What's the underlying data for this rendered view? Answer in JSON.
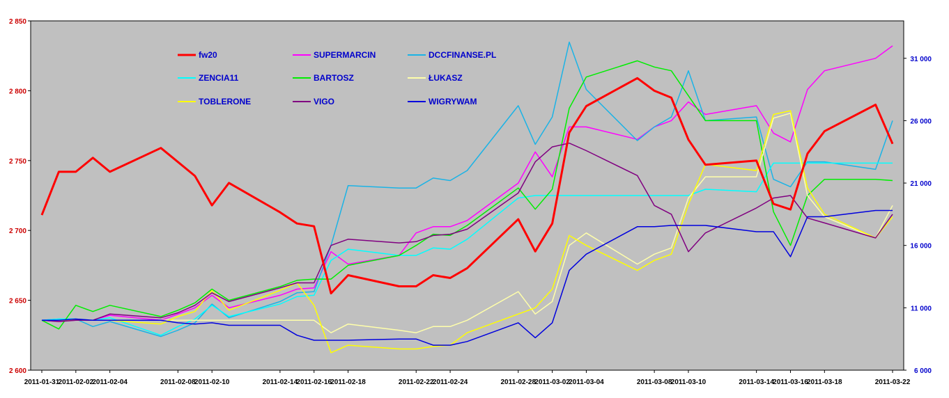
{
  "chart_data": {
    "type": "line",
    "x": [
      "2011-01-31",
      "2011-02-01",
      "2011-02-02",
      "2011-02-03",
      "2011-02-04",
      "2011-02-07",
      "2011-02-08",
      "2011-02-09",
      "2011-02-10",
      "2011-02-11",
      "2011-02-14",
      "2011-02-15",
      "2011-02-16",
      "2011-02-17",
      "2011-02-18",
      "2011-02-21",
      "2011-02-22",
      "2011-02-23",
      "2011-02-24",
      "2011-02-25",
      "2011-02-28",
      "2011-03-01",
      "2011-03-02",
      "2011-03-03",
      "2011-03-04",
      "2011-03-07",
      "2011-03-08",
      "2011-03-09",
      "2011-03-10",
      "2011-03-11",
      "2011-03-14",
      "2011-03-15",
      "2011-03-16",
      "2011-03-17",
      "2011-03-18",
      "2011-03-21",
      "2011-03-22"
    ],
    "x_tick_labels": [
      "2011-01-31",
      "2011-02-02",
      "2011-02-04",
      "2011-02-08",
      "2011-02-10",
      "2011-02-14",
      "2011-02-16",
      "2011-02-18",
      "2011-02-22",
      "2011-02-24",
      "2011-02-28",
      "2011-03-02",
      "2011-03-04",
      "2011-03-08",
      "2011-03-10",
      "2011-03-14",
      "2011-03-16",
      "2011-03-18",
      "2011-03-22"
    ],
    "y_left": {
      "min": 2600,
      "max": 2850,
      "ticks": [
        2600,
        2650,
        2700,
        2750,
        2800,
        2850
      ],
      "tick_labels": [
        "2 600",
        "2 650",
        "2 700",
        "2 750",
        "2 800",
        "2 850"
      ]
    },
    "y_right": {
      "min": 6000,
      "max": 34000,
      "ticks": [
        6000,
        11000,
        16000,
        21000,
        26000,
        31000
      ],
      "tick_labels": [
        "6 000",
        "11 000",
        "16 000",
        "21 000",
        "26 000",
        "31 000"
      ]
    },
    "plot_background": "#c0c0c0",
    "grid": false,
    "legend_position": "top-left inside plot",
    "series": [
      {
        "name": "fw20",
        "color": "#ff0000",
        "width": 3,
        "axis": "left",
        "values": [
          2711,
          2742,
          2742,
          2752,
          2742,
          2759,
          2749,
          2739,
          2718,
          2734,
          2713,
          2705,
          2703,
          2655,
          2668,
          2660,
          2660,
          2668,
          2666,
          2673,
          2708,
          2685,
          2705,
          2770,
          2789,
          2809,
          2800,
          2795,
          2765,
          2747,
          2750,
          2719,
          2715,
          2755,
          2771,
          2790,
          2762
        ]
      },
      {
        "name": "SUPERMARCIN",
        "color": "#ff00ff",
        "width": 1.5,
        "axis": "right",
        "values": [
          10000,
          9900,
          10000,
          10000,
          10400,
          10000,
          10500,
          11000,
          12000,
          11000,
          12000,
          12500,
          12600,
          15500,
          14500,
          15200,
          17000,
          17500,
          17500,
          18000,
          21000,
          23500,
          21500,
          25500,
          25500,
          24500,
          25500,
          26000,
          27500,
          26500,
          27200,
          25000,
          24300,
          28500,
          30000,
          31000,
          32000
        ]
      },
      {
        "name": "DCCFINANSE.PL",
        "color": "#1ab3e6",
        "width": 1.5,
        "axis": "right",
        "values": [
          10000,
          10100,
          10100,
          9500,
          9900,
          8700,
          9200,
          9800,
          11300,
          10200,
          11500,
          12200,
          12300,
          16000,
          20800,
          20600,
          20600,
          21400,
          21200,
          22000,
          27200,
          24100,
          26300,
          32300,
          28500,
          24400,
          25500,
          26300,
          30000,
          26000,
          26300,
          21300,
          20700,
          22700,
          22700,
          22100,
          26000
        ]
      },
      {
        "name": "ZENCIA11",
        "color": "#00ffff",
        "width": 1.5,
        "axis": "right",
        "values": [
          10000,
          10100,
          10100,
          10000,
          10200,
          8800,
          9500,
          10100,
          11200,
          10300,
          11300,
          11900,
          12000,
          14800,
          15700,
          15200,
          15200,
          15800,
          15700,
          16500,
          19800,
          20000,
          20000,
          20000,
          20000,
          20000,
          20000,
          20000,
          20000,
          20500,
          20300,
          22600,
          22600,
          22600,
          22600,
          22600,
          22600
        ]
      },
      {
        "name": "BARTOSZ",
        "color": "#00ee00",
        "width": 1.5,
        "axis": "right",
        "values": [
          10000,
          9300,
          11200,
          10700,
          11200,
          10300,
          10800,
          11400,
          12500,
          11600,
          12700,
          13200,
          13300,
          13300,
          14400,
          15200,
          16000,
          16900,
          16800,
          17600,
          20600,
          18900,
          20500,
          27000,
          29500,
          30800,
          30300,
          30000,
          28000,
          26000,
          26000,
          18700,
          16000,
          20000,
          21300,
          21300,
          21200
        ]
      },
      {
        "name": "ŁUKASZ",
        "color": "#ffffaa",
        "width": 1.5,
        "axis": "right",
        "values": [
          10000,
          10000,
          10000,
          10000,
          10000,
          10000,
          10000,
          10000,
          10000,
          10000,
          10000,
          10000,
          10000,
          9000,
          9700,
          9200,
          9000,
          9500,
          9500,
          10000,
          12300,
          10500,
          11500,
          16000,
          17000,
          14500,
          15300,
          15800,
          19800,
          21500,
          21500,
          26200,
          26600,
          20000,
          18300,
          16600,
          19200
        ]
      },
      {
        "name": "TOBLERONE",
        "color": "#ffff00",
        "width": 1.5,
        "axis": "right",
        "values": [
          10000,
          10000,
          10000,
          10000,
          10000,
          9700,
          10300,
          10700,
          12400,
          10800,
          12400,
          13000,
          11200,
          7400,
          8000,
          7700,
          7700,
          7900,
          8000,
          9000,
          10500,
          11000,
          12500,
          16800,
          16000,
          14000,
          14800,
          15300,
          19300,
          22500,
          22000,
          26500,
          26800,
          20600,
          18500,
          16600,
          18300
        ]
      },
      {
        "name": "VIGO",
        "color": "#800080",
        "width": 1.5,
        "axis": "right",
        "values": [
          10000,
          9900,
          10000,
          10000,
          10500,
          10200,
          10600,
          11200,
          12200,
          11500,
          12600,
          13000,
          13000,
          16000,
          16500,
          16200,
          16300,
          16800,
          16900,
          17300,
          20200,
          22700,
          23900,
          24200,
          23600,
          21600,
          19200,
          18500,
          15500,
          17000,
          19000,
          19800,
          20000,
          18200,
          17800,
          16600,
          18500
        ]
      },
      {
        "name": "WIGRYWAM",
        "color": "#0000dd",
        "width": 1.5,
        "axis": "right",
        "values": [
          10000,
          10000,
          10100,
          10000,
          10000,
          10000,
          9800,
          9700,
          9800,
          9600,
          9600,
          8800,
          8400,
          8400,
          8400,
          8500,
          8500,
          8000,
          8000,
          8300,
          9800,
          8600,
          9800,
          14000,
          15300,
          17500,
          17500,
          17600,
          17600,
          17600,
          17100,
          17100,
          15100,
          18300,
          18300,
          18800,
          18800
        ]
      }
    ]
  }
}
